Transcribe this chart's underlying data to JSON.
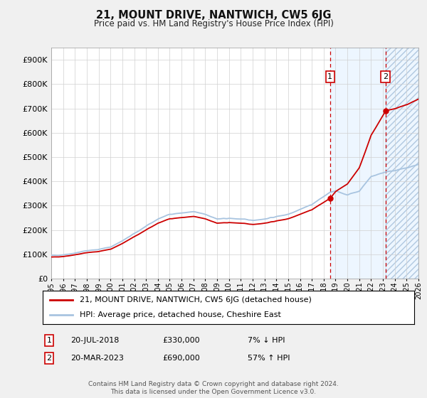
{
  "title": "21, MOUNT DRIVE, NANTWICH, CW5 6JG",
  "subtitle": "Price paid vs. HM Land Registry's House Price Index (HPI)",
  "legend_line1": "21, MOUNT DRIVE, NANTWICH, CW5 6JG (detached house)",
  "legend_line2": "HPI: Average price, detached house, Cheshire East",
  "annotation1_label": "1",
  "annotation1_date": "20-JUL-2018",
  "annotation1_price": "£330,000",
  "annotation1_change": "7% ↓ HPI",
  "annotation2_label": "2",
  "annotation2_date": "20-MAR-2023",
  "annotation2_price": "£690,000",
  "annotation2_change": "57% ↑ HPI",
  "footer": "Contains HM Land Registry data © Crown copyright and database right 2024.\nThis data is licensed under the Open Government Licence v3.0.",
  "hpi_color": "#a8c4e0",
  "sale_color": "#cc0000",
  "marker_color": "#cc0000",
  "annotation_box_color": "#cc0000",
  "vline_color": "#cc0000",
  "shade_color": "#ddeeff",
  "ylim": [
    0,
    950000
  ],
  "yticks": [
    0,
    100000,
    200000,
    300000,
    400000,
    500000,
    600000,
    700000,
    800000,
    900000
  ],
  "xlim_start": 1995.0,
  "xlim_end": 2026.0,
  "sale1_x": 2018.54,
  "sale1_y": 330000,
  "sale2_x": 2023.22,
  "sale2_y": 690000,
  "background_color": "#f0f0f0",
  "plot_bg_color": "#ffffff"
}
